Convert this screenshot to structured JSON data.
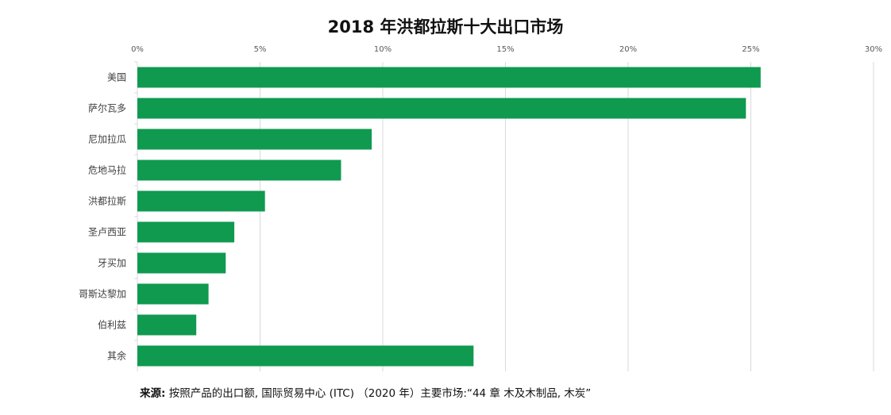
{
  "chart_data": {
    "type": "bar",
    "orientation": "horizontal",
    "title": "2018 年洪都拉斯十大出口市场",
    "categories": [
      "美国",
      "萨尔瓦多",
      "尼加拉瓜",
      "危地马拉",
      "洪都拉斯",
      "圣卢西亚",
      "牙买加",
      "哥斯达黎加",
      "伯利兹",
      "其余"
    ],
    "values": [
      25.4,
      24.8,
      9.55,
      8.3,
      5.2,
      3.95,
      3.6,
      2.9,
      2.4,
      13.7
    ],
    "xlim": [
      0,
      30
    ],
    "xticks": [
      0,
      5,
      10,
      15,
      20,
      25,
      30
    ],
    "xtick_labels": [
      "0%",
      "5%",
      "10%",
      "15%",
      "20%",
      "25%",
      "30%"
    ],
    "xlabel": "",
    "ylabel": "",
    "grid": true,
    "legend": "none",
    "bar_color": "#0f9a4f"
  },
  "source": {
    "label": "来源:",
    "text": " 按照产品的出口额, 国际贸易中心 (ITC) （2020 年）主要市场:“44 章 木及木制品, 木炭”"
  }
}
